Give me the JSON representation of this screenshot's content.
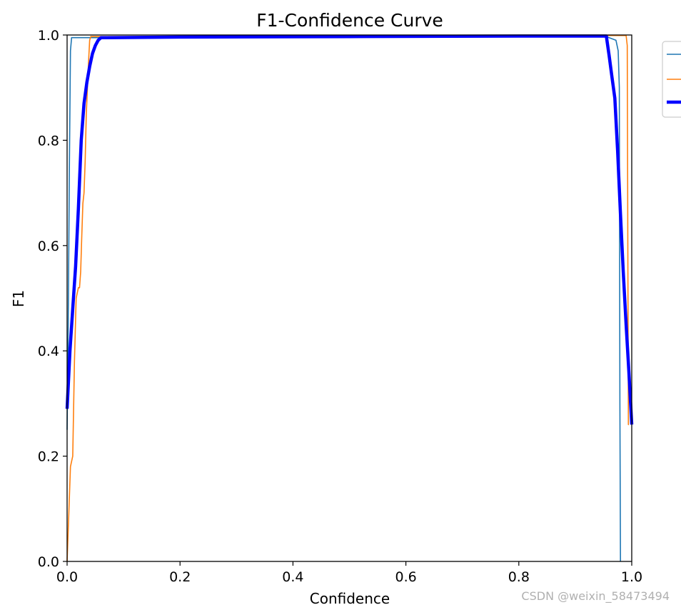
{
  "chart_data": {
    "type": "line",
    "title": "F1-Confidence Curve",
    "xlabel": "Confidence",
    "ylabel": "F1",
    "xlim": [
      0,
      1
    ],
    "ylim": [
      0,
      1
    ],
    "xticks": [
      "0.0",
      "0.2",
      "0.4",
      "0.6",
      "0.8",
      "1.0"
    ],
    "yticks": [
      "0.0",
      "0.2",
      "0.4",
      "0.6",
      "0.8",
      "1.0"
    ],
    "grid": false,
    "legend": "outside upper right",
    "series": [
      {
        "color": "#1f77b4",
        "width": "thin",
        "x": [
          0.0,
          0.002,
          0.004,
          0.006,
          0.008,
          0.012,
          0.05,
          0.3,
          0.6,
          0.95,
          0.972,
          0.976,
          0.978,
          0.979,
          0.98
        ],
        "y": [
          0.25,
          0.45,
          0.75,
          0.97,
          0.995,
          0.995,
          0.995,
          0.997,
          0.999,
          0.999,
          0.99,
          0.97,
          0.9,
          0.3,
          0.0
        ]
      },
      {
        "color": "#ff7f0e",
        "width": "thin",
        "x": [
          0.0,
          0.002,
          0.006,
          0.01,
          0.013,
          0.016,
          0.02,
          0.022,
          0.024,
          0.026,
          0.028,
          0.03,
          0.032,
          0.034,
          0.036,
          0.038,
          0.04,
          0.042,
          0.044,
          0.1,
          0.5,
          0.9,
          0.99,
          0.992,
          0.993,
          0.994,
          0.995
        ],
        "y": [
          0.0,
          0.06,
          0.18,
          0.2,
          0.38,
          0.5,
          0.52,
          0.52,
          0.55,
          0.62,
          0.68,
          0.7,
          0.76,
          0.85,
          0.9,
          0.95,
          0.99,
          0.997,
          0.997,
          0.997,
          0.998,
          0.999,
          0.999,
          0.98,
          0.6,
          0.26,
          0.26
        ]
      },
      {
        "color": "#0000ff",
        "width": "thick",
        "x": [
          0.0,
          0.005,
          0.01,
          0.015,
          0.02,
          0.025,
          0.03,
          0.035,
          0.04,
          0.045,
          0.05,
          0.055,
          0.06,
          0.065,
          0.07,
          0.2,
          0.5,
          0.8,
          0.955,
          0.96,
          0.965,
          0.97,
          0.975,
          0.98,
          0.985,
          0.99,
          0.995,
          1.0
        ],
        "y": [
          0.29,
          0.4,
          0.48,
          0.56,
          0.67,
          0.8,
          0.87,
          0.91,
          0.94,
          0.965,
          0.98,
          0.99,
          0.995,
          0.995,
          0.995,
          0.996,
          0.997,
          0.998,
          0.998,
          0.96,
          0.92,
          0.88,
          0.78,
          0.66,
          0.55,
          0.45,
          0.36,
          0.26
        ]
      }
    ]
  },
  "watermark": "CSDN @weixin_58473494"
}
